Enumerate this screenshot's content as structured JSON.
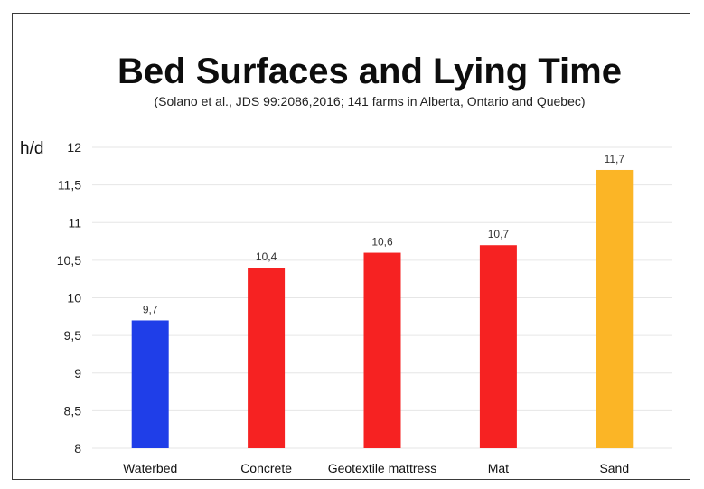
{
  "chart_data": {
    "type": "bar",
    "title": "Bed Surfaces and Lying Time",
    "subtitle": "(Solano et al., JDS 99:2086,2016; 141 farms in Alberta, Ontario and Quebec)",
    "ylabel": "h/d",
    "xlabel": "",
    "ylim": [
      8,
      12
    ],
    "yticks": [
      "12",
      "11,5",
      "11",
      "10,5",
      "10",
      "9,5",
      "9",
      "8,5",
      "8"
    ],
    "ytick_values": [
      12,
      11.5,
      11,
      10.5,
      10,
      9.5,
      9,
      8.5,
      8
    ],
    "grid": true,
    "categories": [
      "Waterbed",
      "Concrete",
      "Geotextile mattress",
      "Mat",
      "Sand"
    ],
    "values": [
      9.7,
      10.4,
      10.6,
      10.7,
      11.7
    ],
    "value_labels": [
      "9,7",
      "10,4",
      "10,6",
      "10,7",
      "11,7"
    ],
    "colors": [
      "#1f3ee8",
      "#f62222",
      "#f62222",
      "#f62222",
      "#fbb526"
    ]
  }
}
